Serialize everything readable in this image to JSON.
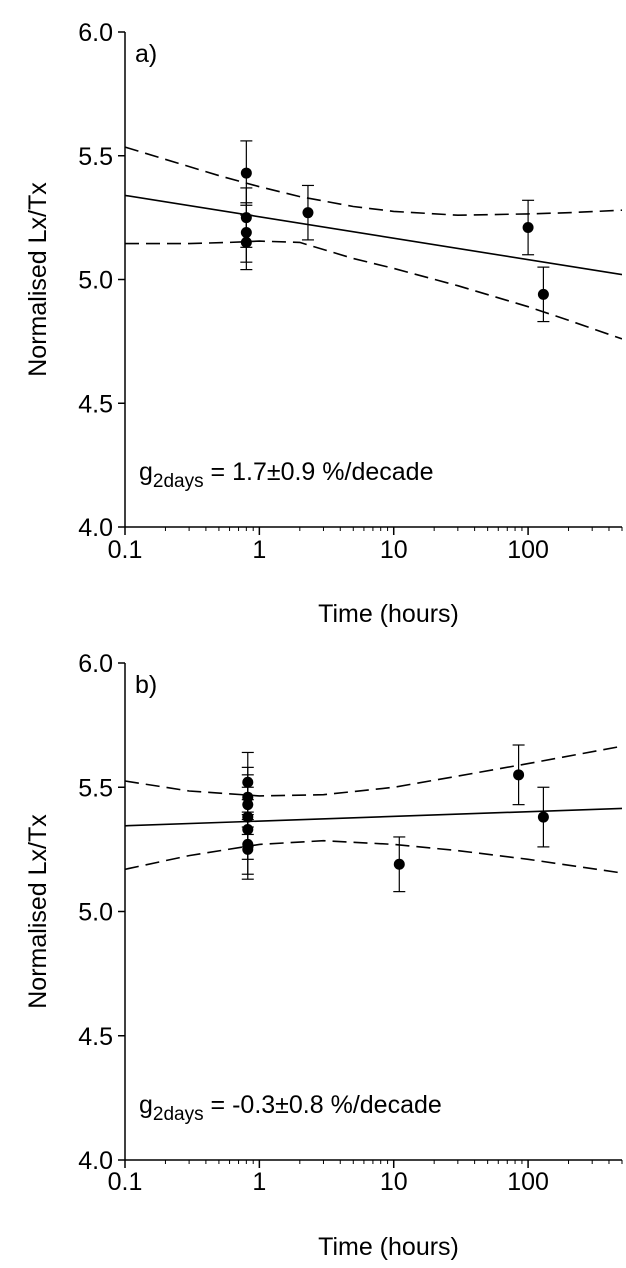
{
  "chart_data": [
    {
      "type": "scatter",
      "panel_label": "a)",
      "xlabel": "Time (hours)",
      "ylabel": "Normalised Lx/Tx",
      "xscale": "log",
      "xlim": [
        0.1,
        500
      ],
      "ylim": [
        4.0,
        6.0
      ],
      "xticks": [
        0.1,
        1,
        10,
        100
      ],
      "xtick_labels": [
        "0.1",
        "1",
        "10",
        "100"
      ],
      "yticks": [
        4.0,
        4.5,
        5.0,
        5.5,
        6.0
      ],
      "ytick_labels": [
        "4.0",
        "4.5",
        "5.0",
        "5.5",
        "6.0"
      ],
      "annotation": {
        "prefix": "g",
        "subscript": "2days",
        "suffix": " = 1.7±0.9 %/decade"
      },
      "grid": false,
      "points": [
        {
          "x": 0.8,
          "y": 5.43,
          "err": 0.13
        },
        {
          "x": 0.8,
          "y": 5.25,
          "err": 0.12
        },
        {
          "x": 0.8,
          "y": 5.19,
          "err": 0.12
        },
        {
          "x": 0.8,
          "y": 5.15,
          "err": 0.11
        },
        {
          "x": 2.3,
          "y": 5.27,
          "err": 0.11
        },
        {
          "x": 100,
          "y": 5.21,
          "err": 0.11
        },
        {
          "x": 130,
          "y": 4.94,
          "err": 0.11
        }
      ],
      "fit": {
        "x": [
          0.1,
          500
        ],
        "y": [
          5.34,
          5.02
        ]
      },
      "ci_upper": {
        "x": [
          0.1,
          0.5,
          1,
          2,
          5,
          10,
          30,
          100,
          200,
          500
        ],
        "y": [
          5.535,
          5.42,
          5.375,
          5.335,
          5.295,
          5.275,
          5.26,
          5.265,
          5.27,
          5.28
        ]
      },
      "ci_lower": {
        "x": [
          0.1,
          0.3,
          0.6,
          1,
          2,
          5,
          10,
          30,
          100,
          200,
          500
        ],
        "y": [
          5.145,
          5.145,
          5.15,
          5.155,
          5.15,
          5.085,
          5.045,
          4.975,
          4.89,
          4.835,
          4.76
        ]
      }
    },
    {
      "type": "scatter",
      "panel_label": "b)",
      "xlabel": "Time (hours)",
      "ylabel": "Normalised Lx/Tx",
      "xscale": "log",
      "xlim": [
        0.1,
        500
      ],
      "ylim": [
        4.0,
        6.0
      ],
      "xticks": [
        0.1,
        1,
        10,
        100
      ],
      "xtick_labels": [
        "0.1",
        "1",
        "10",
        "100"
      ],
      "yticks": [
        4.0,
        4.5,
        5.0,
        5.5,
        6.0
      ],
      "ytick_labels": [
        "4.0",
        "4.5",
        "5.0",
        "5.5",
        "6.0"
      ],
      "annotation": {
        "prefix": "g",
        "subscript": "2days",
        "suffix": " = -0.3±0.8 %/decade"
      },
      "grid": false,
      "points": [
        {
          "x": 0.82,
          "y": 5.52,
          "err": 0.12
        },
        {
          "x": 0.82,
          "y": 5.46,
          "err": 0.12
        },
        {
          "x": 0.82,
          "y": 5.43,
          "err": 0.12
        },
        {
          "x": 0.82,
          "y": 5.38,
          "err": 0.12
        },
        {
          "x": 0.82,
          "y": 5.33,
          "err": 0.12
        },
        {
          "x": 0.82,
          "y": 5.27,
          "err": 0.12
        },
        {
          "x": 0.82,
          "y": 5.25,
          "err": 0.12
        },
        {
          "x": 11,
          "y": 5.19,
          "err": 0.11
        },
        {
          "x": 85,
          "y": 5.55,
          "err": 0.12
        },
        {
          "x": 130,
          "y": 5.38,
          "err": 0.12
        }
      ],
      "fit": {
        "x": [
          0.1,
          500
        ],
        "y": [
          5.345,
          5.415
        ]
      },
      "ci_upper": {
        "x": [
          0.1,
          0.3,
          1,
          3,
          10,
          30,
          100,
          500
        ],
        "y": [
          5.525,
          5.485,
          5.465,
          5.47,
          5.5,
          5.545,
          5.595,
          5.665
        ]
      },
      "ci_lower": {
        "x": [
          0.1,
          0.3,
          1,
          3,
          10,
          30,
          100,
          500
        ],
        "y": [
          5.17,
          5.225,
          5.27,
          5.285,
          5.27,
          5.245,
          5.21,
          5.155
        ]
      }
    }
  ]
}
